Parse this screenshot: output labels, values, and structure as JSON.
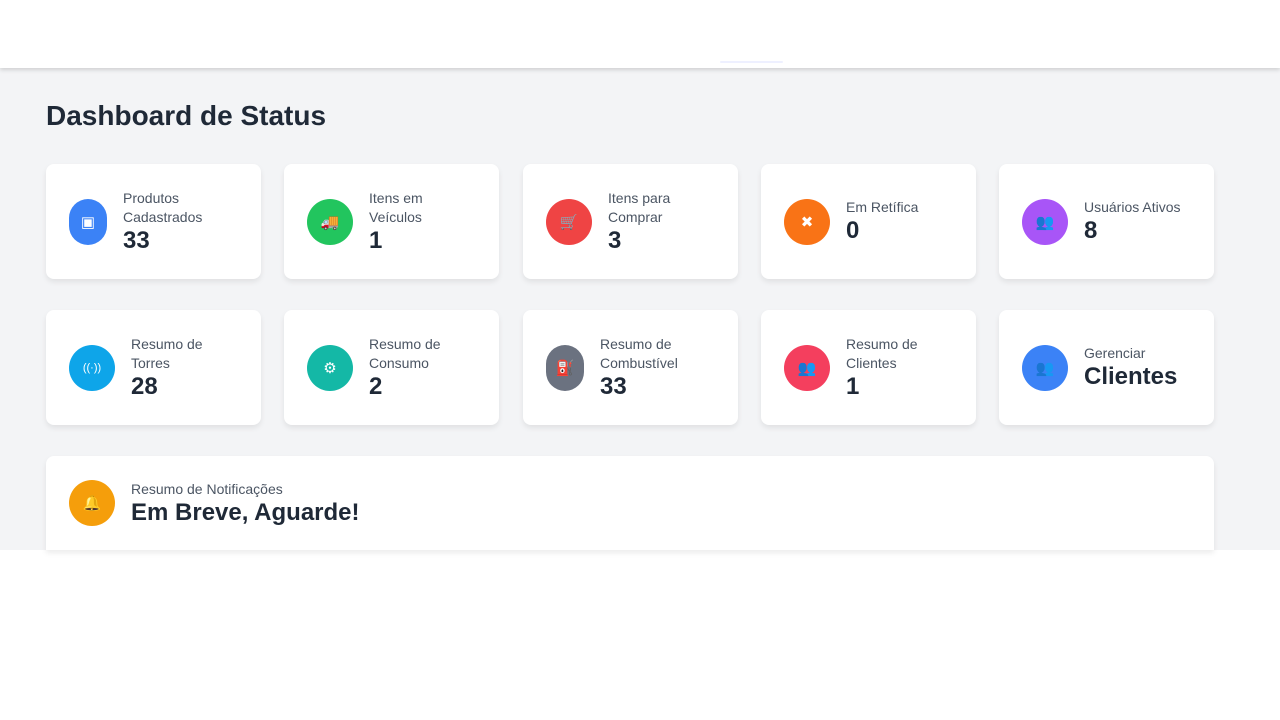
{
  "page_title": "Dashboard de Status",
  "cards": [
    {
      "label": "Produtos Cadastrados",
      "value": "33",
      "icon": "boxes-icon",
      "color": "#3b82f6",
      "glyph": "▣"
    },
    {
      "label": "Itens em Veículos",
      "value": "1",
      "icon": "truck-icon",
      "color": "#22c55e",
      "glyph": "🚚"
    },
    {
      "label": "Itens para Comprar",
      "value": "3",
      "icon": "cart-icon",
      "color": "#ef4444",
      "glyph": "🛒"
    },
    {
      "label": "Em Retífica",
      "value": "0",
      "icon": "tools-icon",
      "color": "#f97316",
      "glyph": "✖"
    },
    {
      "label": "Usuários Ativos",
      "value": "8",
      "icon": "users-icon",
      "color": "#a855f7",
      "glyph": "👥"
    },
    {
      "label": "Resumo de Torres",
      "value": "28",
      "icon": "tower-broadcast-icon",
      "color": "#0ea5e9",
      "glyph": "((·))"
    },
    {
      "label": "Resumo de Consumo",
      "value": "2",
      "icon": "gears-icon",
      "color": "#14b8a6",
      "glyph": "⚙"
    },
    {
      "label": "Resumo de Combustível",
      "value": "33",
      "icon": "gas-pump-icon",
      "color": "#6b7280",
      "glyph": "⛽"
    },
    {
      "label": "Resumo de Clientes",
      "value": "1",
      "icon": "user-group-icon",
      "color": "#f43f5e",
      "glyph": "👥"
    },
    {
      "label": "Gerenciar",
      "value": "Clientes",
      "icon": "users-gear-icon",
      "color": "#3b82f6",
      "glyph": "👥"
    }
  ],
  "notifications": {
    "label": "Resumo de Notificações",
    "value": "Em Breve, Aguarde!",
    "icon": "bell-icon",
    "color": "#f59e0b",
    "glyph": "🔔"
  }
}
